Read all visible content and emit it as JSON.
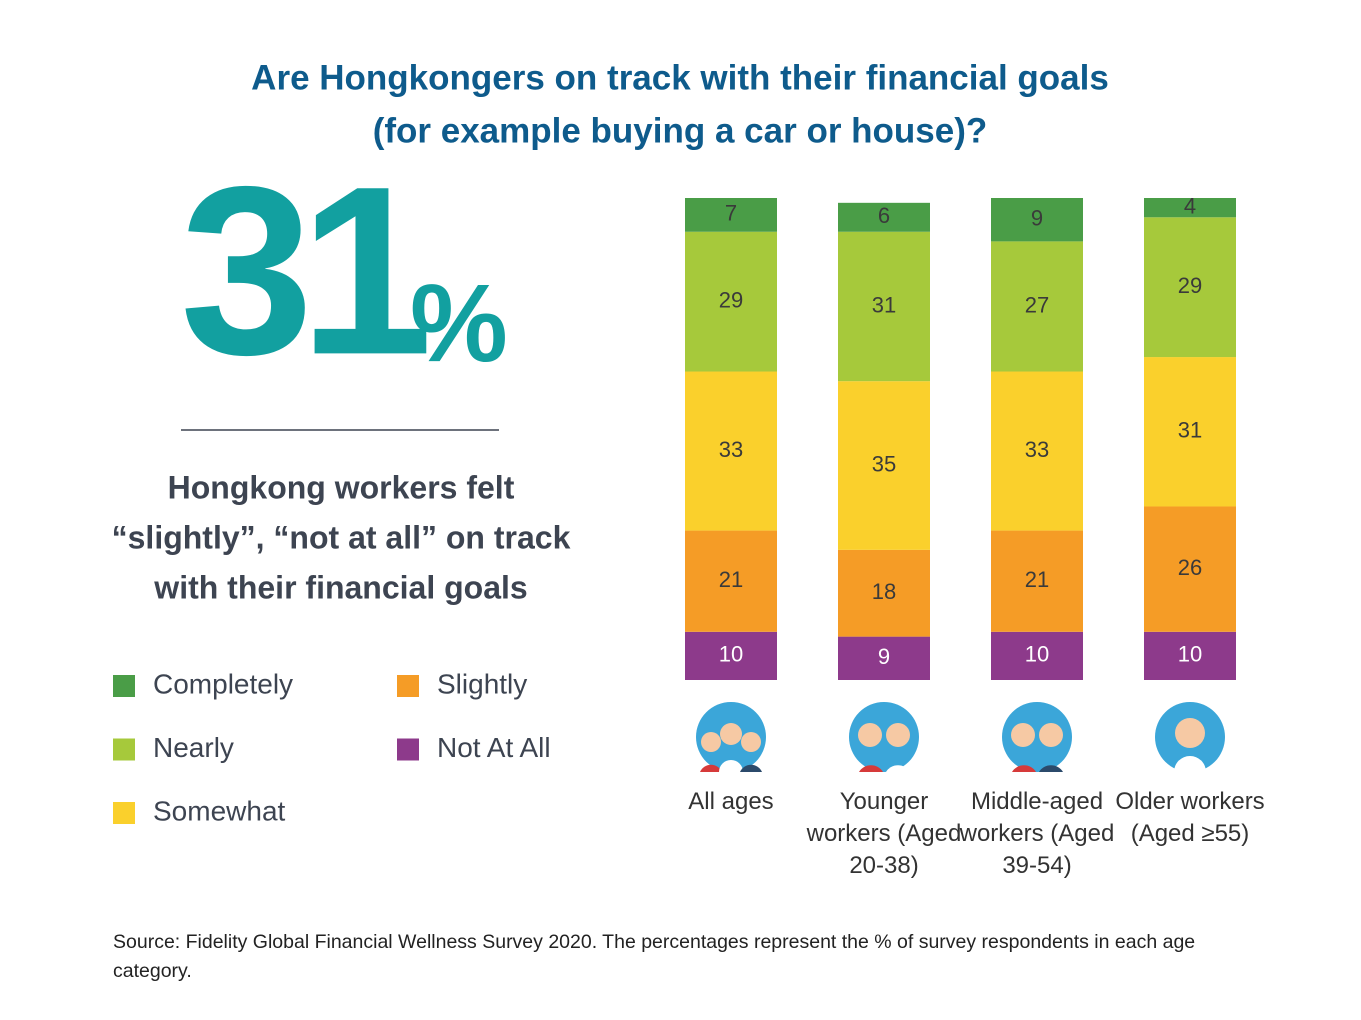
{
  "title": [
    "Are Hongkongers on track with their financial goals",
    "(for example buying a car or house)?"
  ],
  "stat": {
    "number": "31",
    "unit": "%"
  },
  "stat_caption": [
    "Hongkong workers felt",
    "“slightly”, “not at all” on track",
    "with their financial goals"
  ],
  "source": "Source: Fidelity Global Financial Wellness Survey 2020. The percentages represent the % of survey respondents in each age category.",
  "chart_data": {
    "type": "stacked_bar",
    "categories": [
      "All ages",
      "Younger workers (Aged 20-38)",
      "Middle-aged workers (Aged 39-54)",
      "Older workers (Aged ≥55)"
    ],
    "ylim": [
      0,
      100
    ],
    "series": [
      {
        "name": "Completely",
        "color": "#4a9d47",
        "values": [
          7,
          6,
          9,
          4
        ]
      },
      {
        "name": "Nearly",
        "color": "#a6c93b",
        "values": [
          29,
          31,
          27,
          29
        ]
      },
      {
        "name": "Somewhat",
        "color": "#fad02c",
        "values": [
          33,
          35,
          33,
          31
        ]
      },
      {
        "name": "Slightly",
        "color": "#f59c26",
        "values": [
          21,
          18,
          21,
          26
        ]
      },
      {
        "name": "Not At All",
        "color": "#8d3a8b",
        "values": [
          10,
          9,
          10,
          10
        ]
      }
    ]
  }
}
